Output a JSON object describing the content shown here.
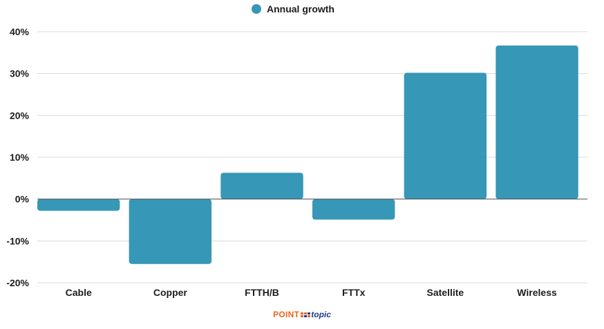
{
  "chart_data": {
    "type": "bar",
    "legend": {
      "label": "Annual growth",
      "placement": "top-center",
      "color": "#3697b7"
    },
    "categories": [
      "Cable",
      "Copper",
      "FTTH/B",
      "FTTx",
      "Satellite",
      "Wireless"
    ],
    "series": [
      {
        "name": "Annual growth",
        "color": "#3697b7",
        "values": [
          -2.8,
          -15.5,
          6.3,
          -4.9,
          30.2,
          36.7
        ]
      }
    ],
    "y_ticks": [
      "-20%",
      "-10%",
      "0%",
      "10%",
      "20%",
      "30%",
      "40%"
    ],
    "ylim": [
      -20,
      40
    ],
    "grid": true,
    "xlabel": "",
    "ylabel": "",
    "title": ""
  },
  "logo": {
    "word1": "POINT",
    "word2": "topic"
  }
}
